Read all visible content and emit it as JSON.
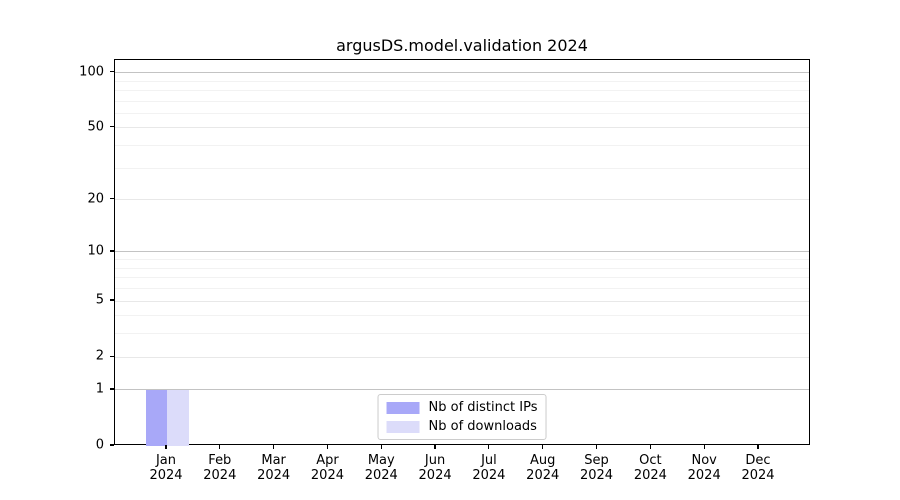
{
  "chart_data": {
    "type": "bar",
    "title": "argusDS.model.validation 2024",
    "categories": [
      "Jan",
      "Feb",
      "Mar",
      "Apr",
      "May",
      "Jun",
      "Jul",
      "Aug",
      "Sep",
      "Oct",
      "Nov",
      "Dec"
    ],
    "x_sublabel": "2024",
    "series": [
      {
        "name": "Nb of distinct IPs",
        "color": "#a8a8f8",
        "values": [
          1,
          0,
          0,
          0,
          0,
          0,
          0,
          0,
          0,
          0,
          0,
          0
        ]
      },
      {
        "name": "Nb of downloads",
        "color": "#dcdcfa",
        "values": [
          1,
          0,
          0,
          0,
          0,
          0,
          0,
          0,
          0,
          0,
          0,
          0
        ]
      }
    ],
    "yscale": "log1p",
    "ylim": [
      0,
      117
    ],
    "yticks": [
      0,
      1,
      2,
      5,
      10,
      20,
      50,
      100
    ],
    "gridlines": {
      "major": [
        1,
        10,
        100
      ],
      "labeled_minor": [
        2,
        5,
        20,
        50
      ],
      "minor": [
        3,
        4,
        6,
        7,
        8,
        9,
        30,
        40,
        60,
        70,
        80,
        90
      ]
    },
    "legend_position": "lower center",
    "grid": true,
    "colors": {
      "spine": "#000000",
      "major_grid": "#c3c3c3",
      "labeled_minor_grid": "#e8e8e8",
      "minor_grid": "#f2f2f2",
      "background": "#ffffff",
      "text": "#000000"
    }
  }
}
